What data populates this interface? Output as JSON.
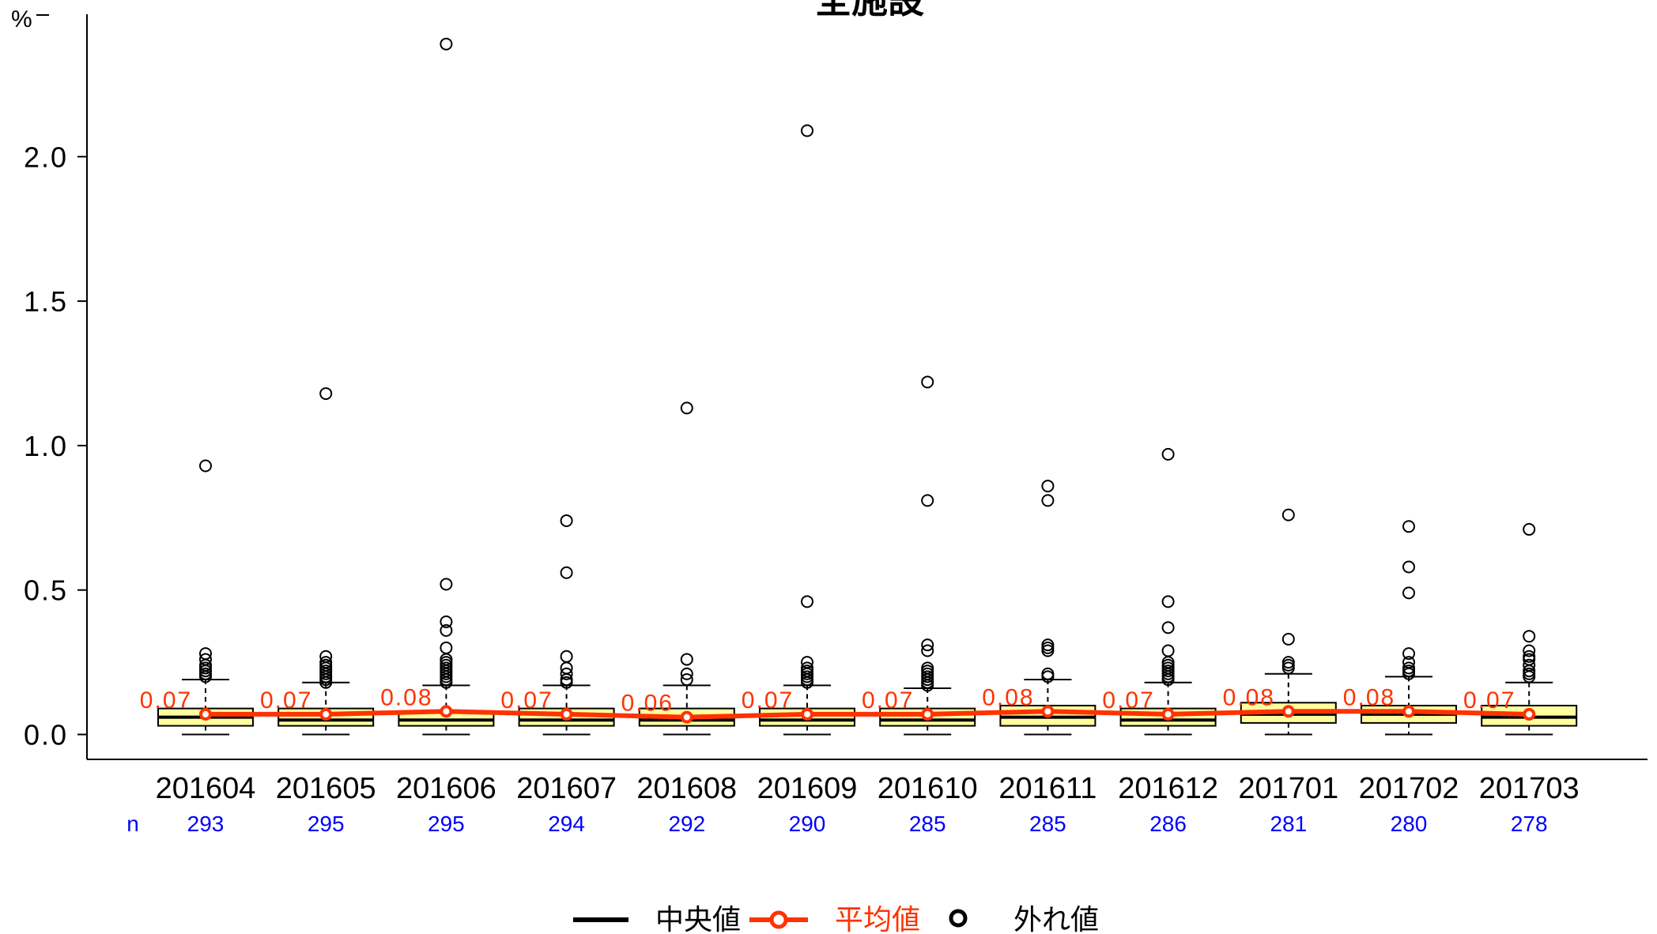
{
  "chart_data": {
    "type": "box",
    "title": "全施設",
    "ylabel": "%",
    "ylim": [
      0,
      2.5
    ],
    "yticks": [
      "0.0",
      "0.5",
      "1.0",
      "1.5",
      "2.0"
    ],
    "n_label": "n",
    "grid": false,
    "legend": {
      "position": "bottom",
      "median_label": "中央値",
      "mean_label": "平均値",
      "outlier_label": "外れ値"
    },
    "colors": {
      "box_fill": "#FFFFA0",
      "mean_line": "#FF3300",
      "mean_label": "#FF3300",
      "n_text": "#0000FF",
      "axis": "#000000"
    },
    "categories": [
      "201604",
      "201605",
      "201606",
      "201607",
      "201608",
      "201609",
      "201610",
      "201611",
      "201612",
      "201701",
      "201702",
      "201703"
    ],
    "n": [
      "293",
      "295",
      "295",
      "294",
      "292",
      "290",
      "285",
      "285",
      "286",
      "281",
      "280",
      "278"
    ],
    "mean": [
      0.07,
      0.07,
      0.08,
      0.07,
      0.06,
      0.07,
      0.07,
      0.08,
      0.07,
      0.08,
      0.08,
      0.07
    ],
    "mean_labels": [
      "0.07",
      "0.07",
      "0.08",
      "0.07",
      "0.06",
      "0.07",
      "0.07",
      "0.08",
      "0.07",
      "0.08",
      "0.08",
      "0.07"
    ],
    "boxes": [
      {
        "min": 0.0,
        "q1": 0.03,
        "median": 0.06,
        "q3": 0.09,
        "max": 0.19,
        "outliers": [
          0.93,
          0.28,
          0.26,
          0.24,
          0.23,
          0.22,
          0.21,
          0.2
        ]
      },
      {
        "min": 0.0,
        "q1": 0.03,
        "median": 0.05,
        "q3": 0.09,
        "max": 0.18,
        "outliers": [
          1.18,
          0.27,
          0.25,
          0.24,
          0.23,
          0.22,
          0.21,
          0.2,
          0.19,
          0.18
        ]
      },
      {
        "min": 0.0,
        "q1": 0.03,
        "median": 0.05,
        "q3": 0.08,
        "max": 0.17,
        "outliers": [
          2.39,
          0.52,
          0.39,
          0.36,
          0.3,
          0.26,
          0.25,
          0.24,
          0.23,
          0.22,
          0.21,
          0.2,
          0.19,
          0.18
        ]
      },
      {
        "min": 0.0,
        "q1": 0.03,
        "median": 0.05,
        "q3": 0.09,
        "max": 0.17,
        "outliers": [
          0.74,
          0.56,
          0.27,
          0.23,
          0.21,
          0.19,
          0.18
        ]
      },
      {
        "min": 0.0,
        "q1": 0.03,
        "median": 0.05,
        "q3": 0.09,
        "max": 0.17,
        "outliers": [
          1.13,
          0.26,
          0.21,
          0.19
        ]
      },
      {
        "min": 0.0,
        "q1": 0.03,
        "median": 0.05,
        "q3": 0.09,
        "max": 0.17,
        "outliers": [
          2.09,
          0.46,
          0.25,
          0.23,
          0.22,
          0.21,
          0.2,
          0.19,
          0.18
        ]
      },
      {
        "min": 0.0,
        "q1": 0.03,
        "median": 0.05,
        "q3": 0.09,
        "max": 0.16,
        "outliers": [
          1.22,
          0.81,
          0.31,
          0.29,
          0.23,
          0.22,
          0.21,
          0.2,
          0.19,
          0.18,
          0.17
        ]
      },
      {
        "min": 0.0,
        "q1": 0.03,
        "median": 0.06,
        "q3": 0.1,
        "max": 0.19,
        "outliers": [
          0.86,
          0.81,
          0.31,
          0.3,
          0.29,
          0.21,
          0.2
        ]
      },
      {
        "min": 0.0,
        "q1": 0.03,
        "median": 0.05,
        "q3": 0.09,
        "max": 0.18,
        "outliers": [
          0.97,
          0.46,
          0.37,
          0.29,
          0.25,
          0.24,
          0.23,
          0.22,
          0.21,
          0.2,
          0.19
        ]
      },
      {
        "min": 0.0,
        "q1": 0.04,
        "median": 0.07,
        "q3": 0.11,
        "max": 0.21,
        "outliers": [
          0.76,
          0.33,
          0.25,
          0.24,
          0.23
        ]
      },
      {
        "min": 0.0,
        "q1": 0.04,
        "median": 0.07,
        "q3": 0.1,
        "max": 0.2,
        "outliers": [
          0.72,
          0.58,
          0.49,
          0.28,
          0.25,
          0.23,
          0.22,
          0.21
        ]
      },
      {
        "min": 0.0,
        "q1": 0.03,
        "median": 0.06,
        "q3": 0.1,
        "max": 0.18,
        "outliers": [
          0.71,
          0.34,
          0.29,
          0.27,
          0.26,
          0.24,
          0.22,
          0.21,
          0.2
        ]
      }
    ]
  }
}
